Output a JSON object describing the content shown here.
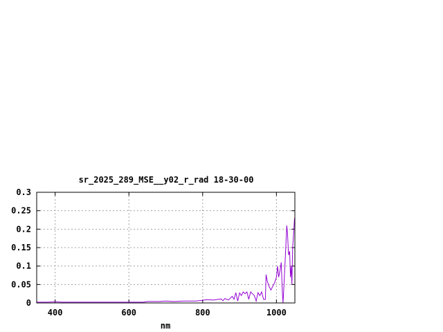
{
  "chart_data": {
    "type": "line",
    "title": "sr_2025_289_MSE__y02_r_rad 18-30-00",
    "xlabel": "nm",
    "ylabel": "",
    "xlim": [
      350,
      1050
    ],
    "ylim": [
      0,
      0.3
    ],
    "xticks": [
      400,
      600,
      800,
      1000
    ],
    "xtick_labels": [
      "400",
      "600",
      "800",
      "1000"
    ],
    "yticks": [
      0,
      0.05,
      0.1,
      0.15,
      0.2,
      0.25,
      0.3
    ],
    "ytick_labels": [
      "0",
      "0.05",
      "0.1",
      "0.15",
      "0.2",
      "0.25",
      "0.3"
    ],
    "grid": true,
    "series": [
      {
        "color": "#9400d3",
        "x": [
          350,
          380,
          400,
          420,
          450,
          500,
          550,
          600,
          640,
          650,
          680,
          700,
          720,
          750,
          780,
          800,
          810,
          830,
          850,
          855,
          860,
          870,
          880,
          885,
          890,
          895,
          900,
          905,
          910,
          915,
          920,
          925,
          930,
          935,
          940,
          945,
          950,
          955,
          960,
          965,
          970,
          972,
          975,
          980,
          985,
          990,
          995,
          1000,
          1003,
          1006,
          1010,
          1013,
          1016,
          1018,
          1020,
          1024,
          1028,
          1030,
          1033,
          1036,
          1038,
          1040,
          1042,
          1044,
          1046,
          1049
        ],
        "y": [
          0.002,
          0.002,
          0.003,
          0.002,
          0.002,
          0.002,
          0.002,
          0.002,
          0.002,
          0.004,
          0.004,
          0.005,
          0.004,
          0.005,
          0.005,
          0.007,
          0.009,
          0.008,
          0.011,
          0.006,
          0.012,
          0.008,
          0.018,
          0.01,
          0.028,
          0.005,
          0.027,
          0.02,
          0.03,
          0.025,
          0.03,
          0.01,
          0.03,
          0.025,
          0.02,
          0.005,
          0.028,
          0.02,
          0.03,
          0.01,
          0.01,
          0.077,
          0.06,
          0.045,
          0.035,
          0.045,
          0.055,
          0.07,
          0.1,
          0.07,
          0.09,
          0.11,
          0.03,
          0.0,
          0.04,
          0.12,
          0.21,
          0.19,
          0.13,
          0.14,
          0.07,
          0.1,
          0.05,
          0.15,
          0.18,
          0.23
        ]
      }
    ]
  }
}
